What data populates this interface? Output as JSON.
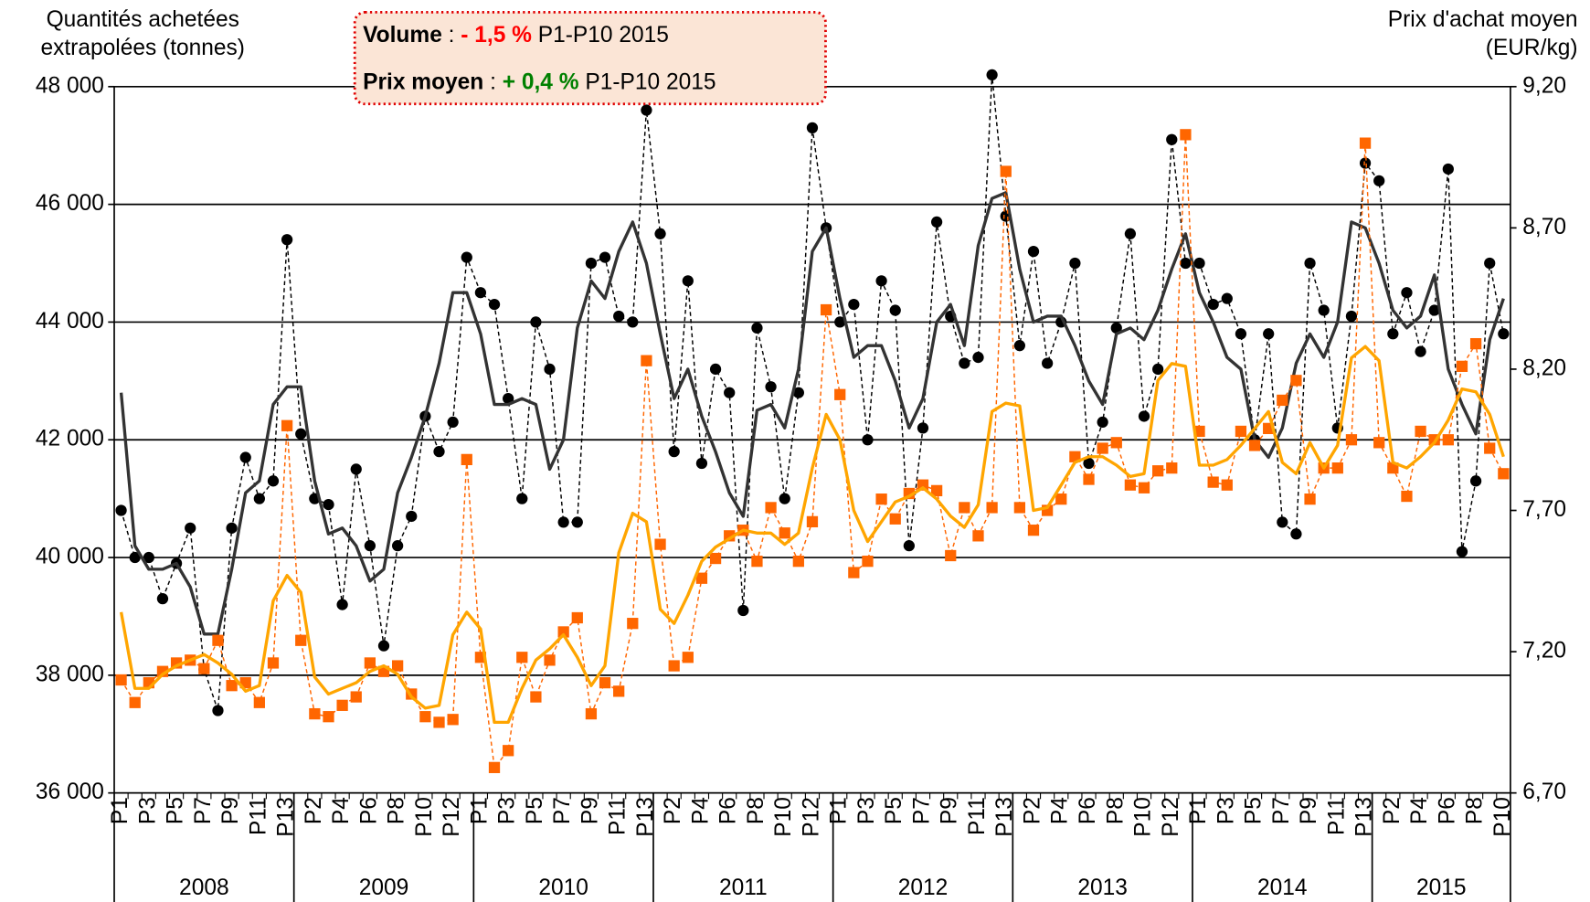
{
  "chart_data": {
    "type": "line",
    "ylabel": [
      "Quantités achetées",
      "extrapolées (tonnes)"
    ],
    "y2label": [
      "Prix d'achat moyen",
      "(EUR/kg)"
    ],
    "annotation": [
      [
        {
          "text": "Volume",
          "bold": true
        },
        {
          "text": " : "
        },
        {
          "text": "- 1,5 %",
          "bold": true,
          "color": "#ff0000"
        },
        {
          "text": " P1-P10 2015"
        }
      ],
      [
        {
          "text": "Prix moyen",
          "bold": true
        },
        {
          "text": " : "
        },
        {
          "text": "+ 0,4 %",
          "bold": true,
          "color": "#008000"
        },
        {
          "text": " P1-P10 2015"
        }
      ]
    ],
    "categories": [
      "P1",
      null,
      "P3",
      null,
      "P5",
      null,
      "P7",
      null,
      "P9",
      null,
      "P11",
      null,
      "P13",
      null,
      "P2",
      null,
      "P4",
      null,
      "P6",
      null,
      "P8",
      null,
      "P10",
      null,
      "P12",
      null,
      "P1",
      null,
      "P3",
      null,
      "P5",
      null,
      "P7",
      null,
      "P9",
      null,
      "P11",
      null,
      "P13",
      null,
      "P2",
      null,
      "P4",
      null,
      "P6",
      null,
      "P8",
      null,
      "P10",
      null,
      "P12",
      null,
      "P1",
      null,
      "P3",
      null,
      "P5",
      null,
      "P7",
      null,
      "P9",
      null,
      "P11",
      null,
      "P13",
      null,
      "P2",
      null,
      "P4",
      null,
      "P6",
      null,
      "P8",
      null,
      "P10",
      null,
      "P12",
      null,
      "P1",
      null,
      "P3",
      null,
      "P5",
      null,
      "P7",
      null,
      "P9",
      null,
      "P11",
      null,
      "P13",
      null,
      "P2",
      null,
      "P4",
      null,
      "P6",
      null,
      "P8",
      null,
      "P10"
    ],
    "year_groups": [
      {
        "label": "2008",
        "span": 13
      },
      {
        "label": "2009",
        "span": 13
      },
      {
        "label": "2010",
        "span": 13
      },
      {
        "label": "2011",
        "span": 13
      },
      {
        "label": "2012",
        "span": 13
      },
      {
        "label": "2013",
        "span": 13
      },
      {
        "label": "2014",
        "span": 13
      },
      {
        "label": "2015",
        "span": 10
      }
    ],
    "ylim": [
      36000,
      48000
    ],
    "yticks": [
      {
        "value": 36000,
        "label": "36 000"
      },
      {
        "value": 38000,
        "label": "38 000"
      },
      {
        "value": 40000,
        "label": "40 000"
      },
      {
        "value": 42000,
        "label": "42 000"
      },
      {
        "value": 44000,
        "label": "44 000"
      },
      {
        "value": 46000,
        "label": "46 000"
      },
      {
        "value": 48000,
        "label": "48 000"
      }
    ],
    "y2lim": [
      6.7,
      9.2
    ],
    "y2ticks": [
      {
        "value": 6.7,
        "label": "6,70"
      },
      {
        "value": 7.2,
        "label": "7,20"
      },
      {
        "value": 7.7,
        "label": "7,70"
      },
      {
        "value": 8.2,
        "label": "8,20"
      },
      {
        "value": 8.7,
        "label": "8,70"
      },
      {
        "value": 9.2,
        "label": "9,20"
      }
    ],
    "grid": true,
    "series": [
      {
        "color": "#000000",
        "marker": "circle",
        "dashed": true,
        "axis": "y",
        "values": [
          40800,
          40000,
          40000,
          39300,
          39900,
          40500,
          38100,
          37400,
          40500,
          41700,
          41000,
          41300,
          45400,
          42100,
          41000,
          40900,
          39200,
          41500,
          40200,
          38500,
          40200,
          40700,
          42400,
          41800,
          42300,
          45100,
          44500,
          44300,
          42700,
          41000,
          44000,
          43200,
          40600,
          40600,
          45000,
          45100,
          44100,
          44000,
          47600,
          45500,
          41800,
          44700,
          41600,
          43200,
          42800,
          39100,
          43900,
          42900,
          41000,
          42800,
          47300,
          45600,
          44000,
          44300,
          42000,
          44700,
          44200,
          40200,
          42200,
          45700,
          44100,
          43300,
          43400,
          48200,
          45800,
          43600,
          45200,
          43300,
          44000,
          45000,
          41600,
          42300,
          43900,
          45500,
          42400,
          43200,
          47100,
          45000,
          45000,
          44300,
          44400,
          43800,
          42000,
          43800,
          40600,
          40400,
          45000,
          44200,
          42200,
          44100,
          46700,
          46400,
          43800,
          44500,
          43500,
          44200,
          46600,
          40100,
          41300,
          45000,
          43800
        ]
      },
      {
        "color": "#333333",
        "marker": "none",
        "dashed": false,
        "axis": "y",
        "values": [
          42800,
          40200,
          39800,
          39800,
          39900,
          39500,
          38700,
          38700,
          39800,
          41100,
          41300,
          42600,
          42900,
          42900,
          41300,
          40400,
          40500,
          40200,
          39600,
          39800,
          41100,
          41700,
          42400,
          43300,
          44500,
          44500,
          43800,
          42600,
          42600,
          42700,
          42600,
          41500,
          42000,
          43900,
          44700,
          44400,
          45200,
          45700,
          45000,
          43800,
          42700,
          43200,
          42400,
          41800,
          41100,
          40700,
          42500,
          42600,
          42200,
          43200,
          45200,
          45600,
          44400,
          43400,
          43600,
          43600,
          43000,
          42200,
          42700,
          44000,
          44300,
          43600,
          45300,
          46100,
          46200,
          44900,
          44000,
          44100,
          44100,
          43600,
          43000,
          42600,
          43800,
          43900,
          43700,
          44200,
          44900,
          45500,
          44500,
          44000,
          43400,
          43200,
          42000,
          41700,
          42200,
          43300,
          43800,
          43400,
          44000,
          45700,
          45600,
          45000,
          44200,
          43900,
          44100,
          44800,
          43200,
          42600,
          42100,
          43700,
          44400
        ]
      },
      {
        "color": "#ff6600",
        "marker": "square",
        "dashed": true,
        "axis": "y2",
        "values": [
          7.1,
          7.02,
          7.09,
          7.13,
          7.16,
          7.17,
          7.14,
          7.24,
          7.08,
          7.09,
          7.02,
          7.16,
          8.0,
          7.24,
          6.98,
          6.97,
          7.01,
          7.04,
          7.16,
          7.13,
          7.15,
          7.05,
          6.97,
          6.95,
          6.96,
          7.88,
          7.18,
          6.79,
          6.85,
          7.18,
          7.04,
          7.17,
          7.27,
          7.32,
          6.98,
          7.09,
          7.06,
          7.3,
          8.23,
          7.58,
          7.15,
          7.18,
          7.46,
          7.53,
          7.61,
          7.63,
          7.52,
          7.71,
          7.62,
          7.52,
          7.66,
          8.41,
          8.11,
          7.48,
          7.52,
          7.74,
          7.67,
          7.76,
          7.79,
          7.77,
          7.54,
          7.71,
          7.61,
          7.71,
          8.9,
          7.71,
          7.63,
          7.7,
          7.74,
          7.89,
          7.81,
          7.92,
          7.94,
          7.79,
          7.78,
          7.84,
          7.85,
          9.03,
          7.98,
          7.8,
          7.79,
          7.98,
          7.93,
          7.99,
          8.09,
          8.16,
          7.74,
          7.85,
          7.85,
          7.95,
          9.0,
          7.94,
          7.85,
          7.75,
          7.98,
          7.95,
          7.95,
          8.21,
          8.29,
          7.92,
          7.83
        ]
      },
      {
        "color": "#ffa500",
        "marker": "none",
        "dashed": false,
        "axis": "y2",
        "values": [
          7.34,
          7.07,
          7.07,
          7.12,
          7.15,
          7.17,
          7.19,
          7.16,
          7.12,
          7.06,
          7.08,
          7.38,
          7.47,
          7.41,
          7.11,
          7.05,
          7.07,
          7.09,
          7.13,
          7.15,
          7.12,
          7.04,
          7.0,
          7.01,
          7.26,
          7.34,
          7.28,
          6.95,
          6.95,
          7.07,
          7.17,
          7.21,
          7.26,
          7.18,
          7.08,
          7.15,
          7.55,
          7.69,
          7.66,
          7.35,
          7.3,
          7.4,
          7.52,
          7.57,
          7.6,
          7.63,
          7.62,
          7.62,
          7.58,
          7.62,
          7.85,
          8.04,
          7.95,
          7.7,
          7.59,
          7.66,
          7.73,
          7.75,
          7.78,
          7.74,
          7.68,
          7.64,
          7.72,
          8.05,
          8.08,
          8.07,
          7.7,
          7.71,
          7.79,
          7.87,
          7.89,
          7.89,
          7.86,
          7.82,
          7.83,
          8.16,
          8.22,
          8.21,
          7.86,
          7.86,
          7.88,
          7.93,
          7.99,
          8.05,
          7.87,
          7.83,
          7.94,
          7.85,
          7.93,
          8.24,
          8.28,
          8.23,
          7.87,
          7.85,
          7.89,
          7.94,
          8.02,
          8.13,
          8.12,
          8.04,
          7.89
        ]
      }
    ]
  }
}
